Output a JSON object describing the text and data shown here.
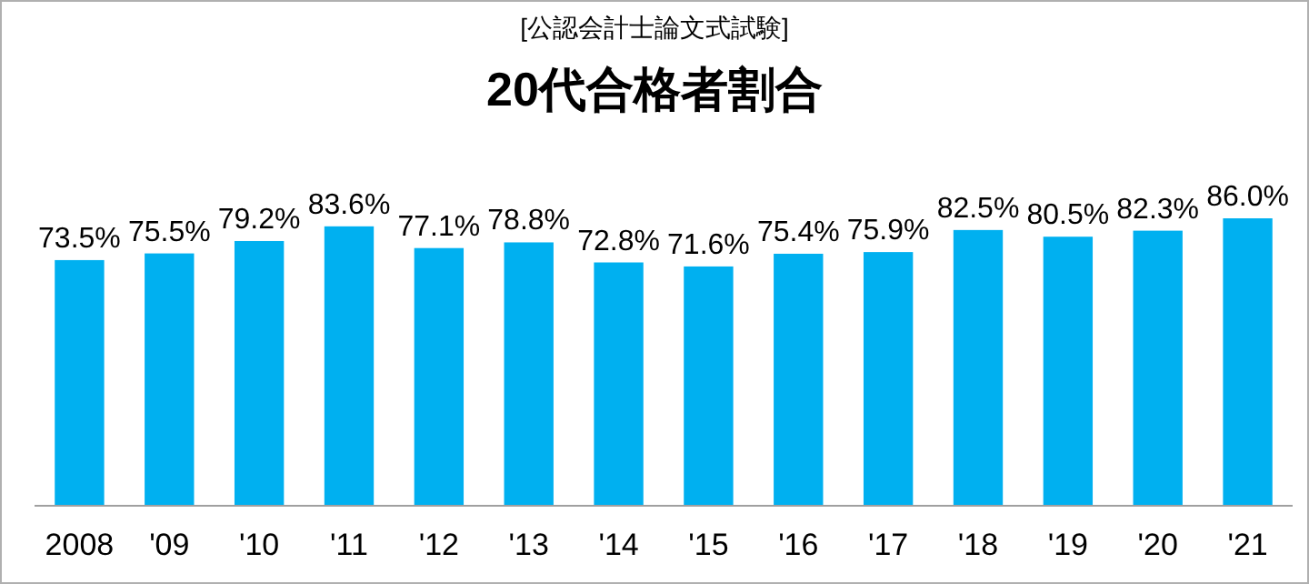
{
  "chart_data": {
    "type": "bar",
    "subtitle": "[公認会計士論文式試験]",
    "title": "20代合格者割合",
    "categories": [
      "2008",
      "'09",
      "'10",
      "'11",
      "'12",
      "'13",
      "'14",
      "'15",
      "'16",
      "'17",
      "'18",
      "'19",
      "'20",
      "'21"
    ],
    "values": [
      73.5,
      75.5,
      79.2,
      83.6,
      77.1,
      78.8,
      72.8,
      71.6,
      75.4,
      75.9,
      82.5,
      80.5,
      82.3,
      86.0
    ],
    "value_labels": [
      "73.5%",
      "75.5%",
      "79.2%",
      "83.6%",
      "77.1%",
      "78.8%",
      "72.8%",
      "71.6%",
      "75.4%",
      "75.9%",
      "82.5%",
      "80.5%",
      "82.3%",
      "86.0%"
    ],
    "color": "#00b0f0",
    "tick_labels": "x"
  }
}
